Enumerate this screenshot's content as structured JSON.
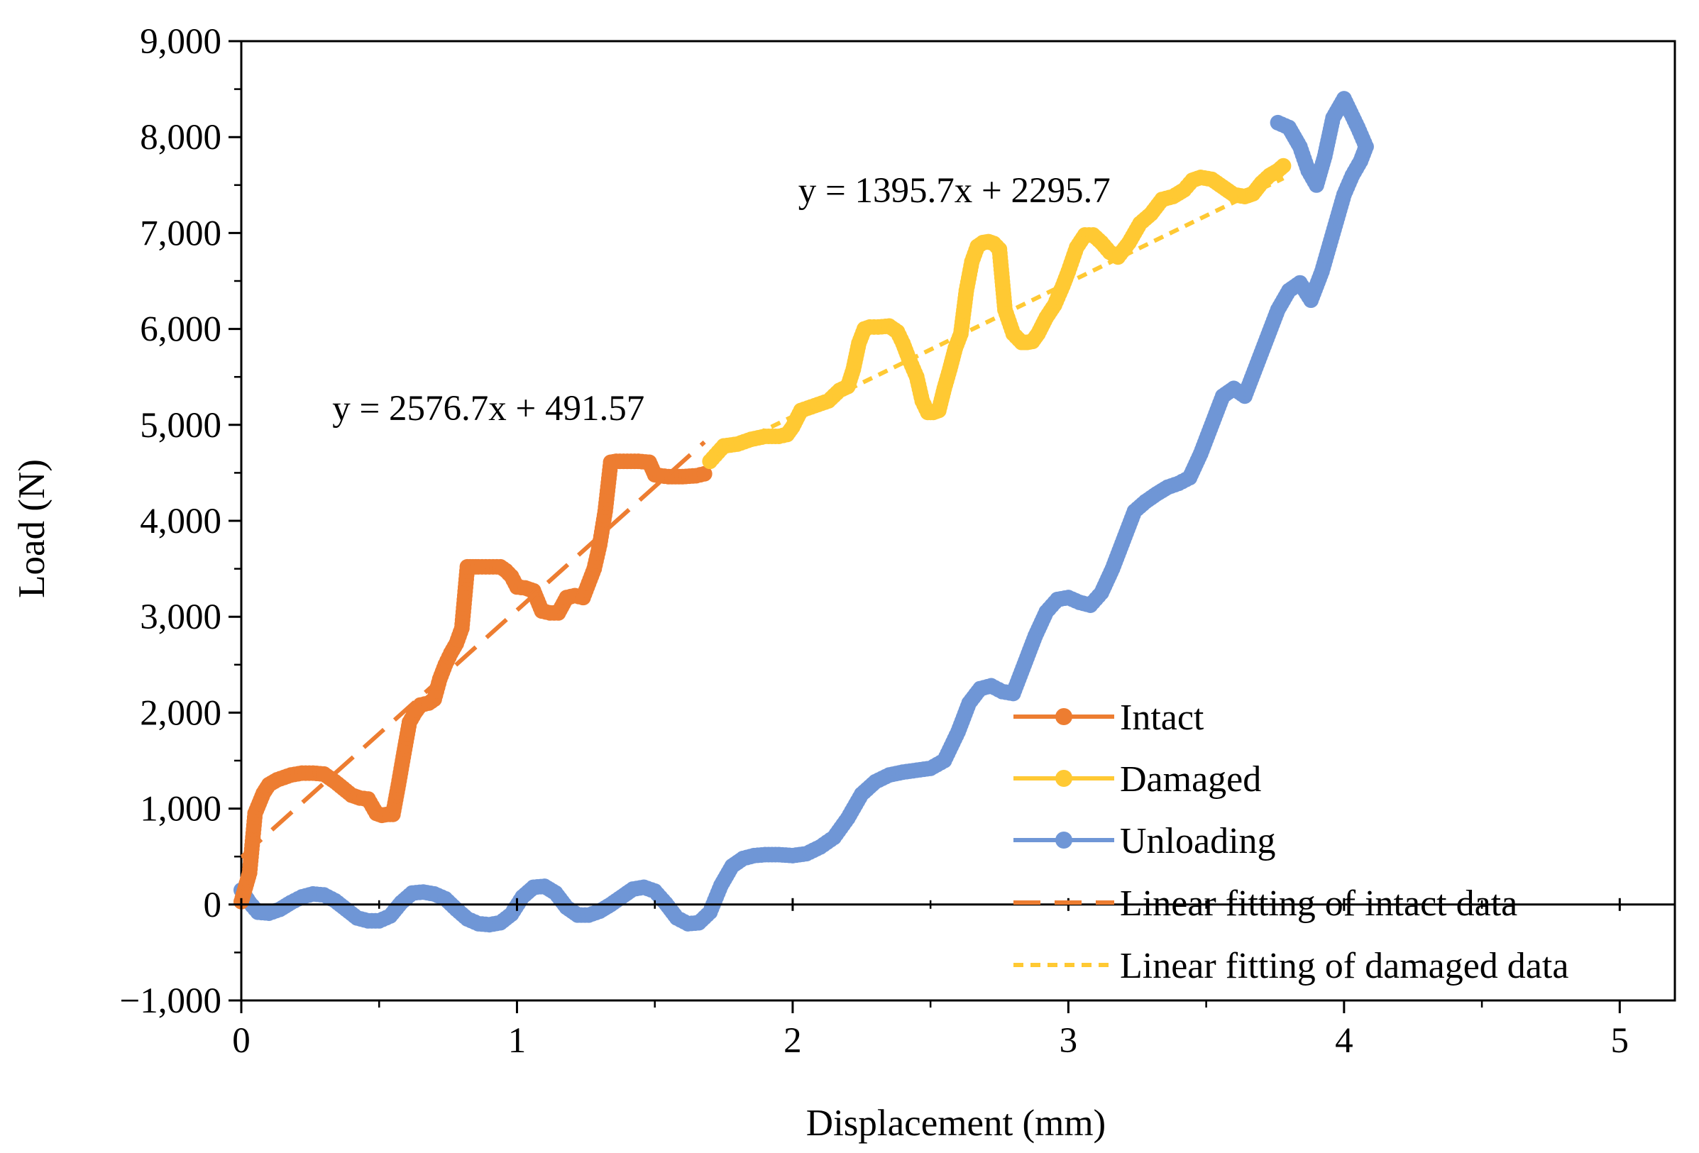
{
  "chart_data": {
    "type": "scatter",
    "title": "",
    "xlabel": "Displacement (mm)",
    "ylabel": "Load (N)",
    "xlim": [
      0,
      5.2
    ],
    "ylim": [
      -1000,
      9000
    ],
    "x_ticks": [
      0,
      1,
      2,
      3,
      4,
      5
    ],
    "x_tick_labels": [
      "0",
      "1",
      "2",
      "3",
      "4",
      "5"
    ],
    "y_ticks": [
      -1000,
      0,
      1000,
      2000,
      3000,
      4000,
      5000,
      6000,
      7000,
      8000,
      9000
    ],
    "y_tick_labels": [
      "−1,000",
      "0",
      "1,000",
      "2,000",
      "3,000",
      "4,000",
      "5,000",
      "6,000",
      "7,000",
      "8,000",
      "9,000"
    ],
    "grid": false,
    "legend_position": "bottom-right",
    "colors": {
      "intact": "#ED7D31",
      "damaged": "#FFC933",
      "unloading": "#6F96D6"
    },
    "series": [
      {
        "name": "Intact",
        "kind": "line-marker",
        "color": "#ED7D31",
        "x": [
          0,
          0.03,
          0.05,
          0.08,
          0.1,
          0.13,
          0.18,
          0.22,
          0.26,
          0.3,
          0.34,
          0.37,
          0.4,
          0.43,
          0.46,
          0.49,
          0.51,
          0.53,
          0.55,
          0.57,
          0.59,
          0.61,
          0.63,
          0.65,
          0.68,
          0.7,
          0.72,
          0.74,
          0.76,
          0.78,
          0.8,
          0.82,
          0.84,
          0.86,
          0.9,
          0.94,
          0.96,
          0.98,
          1.0,
          1.03,
          1.06,
          1.09,
          1.12,
          1.15,
          1.18,
          1.21,
          1.24,
          1.26,
          1.28,
          1.3,
          1.32,
          1.34,
          1.36,
          1.4,
          1.44,
          1.48,
          1.5,
          1.52,
          1.55,
          1.6,
          1.65,
          1.68
        ],
        "y": [
          30,
          330,
          950,
          1160,
          1250,
          1300,
          1350,
          1370,
          1370,
          1360,
          1280,
          1210,
          1140,
          1110,
          1100,
          950,
          930,
          940,
          940,
          1250,
          1580,
          1900,
          2000,
          2080,
          2100,
          2140,
          2350,
          2500,
          2620,
          2720,
          2880,
          3520,
          3520,
          3520,
          3520,
          3520,
          3480,
          3420,
          3310,
          3300,
          3270,
          3060,
          3040,
          3040,
          3200,
          3220,
          3200,
          3350,
          3500,
          3750,
          4100,
          4610,
          4620,
          4620,
          4620,
          4610,
          4480,
          4470,
          4460,
          4460,
          4470,
          4490
        ]
      },
      {
        "name": "Damaged",
        "kind": "line-marker",
        "color": "#FFC933",
        "x": [
          1.7,
          1.75,
          1.8,
          1.85,
          1.9,
          1.95,
          1.98,
          2.0,
          2.03,
          2.08,
          2.13,
          2.17,
          2.2,
          2.22,
          2.24,
          2.26,
          2.28,
          2.31,
          2.35,
          2.38,
          2.4,
          2.42,
          2.45,
          2.47,
          2.49,
          2.51,
          2.53,
          2.55,
          2.57,
          2.59,
          2.61,
          2.63,
          2.65,
          2.67,
          2.69,
          2.71,
          2.73,
          2.75,
          2.77,
          2.8,
          2.83,
          2.85,
          2.87,
          2.89,
          2.92,
          2.95,
          2.98,
          3.0,
          3.03,
          3.06,
          3.09,
          3.12,
          3.15,
          3.18,
          3.22,
          3.26,
          3.3,
          3.34,
          3.38,
          3.42,
          3.45,
          3.48,
          3.52,
          3.56,
          3.6,
          3.64,
          3.67,
          3.7,
          3.73,
          3.76,
          3.78
        ],
        "y": [
          4620,
          4780,
          4800,
          4850,
          4880,
          4880,
          4900,
          4980,
          5150,
          5200,
          5250,
          5360,
          5400,
          5580,
          5850,
          6000,
          6020,
          6020,
          6030,
          5970,
          5850,
          5700,
          5500,
          5250,
          5130,
          5130,
          5150,
          5380,
          5580,
          5800,
          5950,
          6400,
          6700,
          6860,
          6900,
          6910,
          6890,
          6830,
          6200,
          5950,
          5860,
          5860,
          5870,
          5950,
          6120,
          6250,
          6450,
          6600,
          6850,
          6980,
          6980,
          6900,
          6800,
          6750,
          6900,
          7100,
          7200,
          7350,
          7380,
          7450,
          7550,
          7580,
          7560,
          7480,
          7400,
          7380,
          7410,
          7520,
          7600,
          7650,
          7700
        ]
      },
      {
        "name": "Unloading",
        "kind": "line-marker",
        "color": "#6F96D6",
        "x": [
          0,
          0.03,
          0.06,
          0.1,
          0.14,
          0.18,
          0.22,
          0.26,
          0.3,
          0.34,
          0.38,
          0.42,
          0.46,
          0.5,
          0.54,
          0.58,
          0.62,
          0.66,
          0.7,
          0.74,
          0.78,
          0.82,
          0.86,
          0.9,
          0.94,
          0.98,
          1.02,
          1.06,
          1.1,
          1.14,
          1.18,
          1.22,
          1.26,
          1.3,
          1.34,
          1.38,
          1.42,
          1.46,
          1.5,
          1.54,
          1.58,
          1.62,
          1.66,
          1.7,
          1.74,
          1.78,
          1.82,
          1.86,
          1.9,
          1.95,
          2.0,
          2.05,
          2.1,
          2.15,
          2.2,
          2.25,
          2.3,
          2.35,
          2.4,
          2.45,
          2.5,
          2.55,
          2.6,
          2.64,
          2.68,
          2.72,
          2.76,
          2.8,
          2.84,
          2.88,
          2.92,
          2.96,
          3.0,
          3.04,
          3.08,
          3.12,
          3.16,
          3.2,
          3.24,
          3.28,
          3.32,
          3.36,
          3.4,
          3.44,
          3.48,
          3.52,
          3.56,
          3.6,
          3.64,
          3.68,
          3.72,
          3.76,
          3.8,
          3.84,
          3.88,
          3.92,
          3.96,
          4.0,
          4.03,
          4.06,
          4.08,
          4.05,
          4.0,
          3.96,
          3.93,
          3.9,
          3.87,
          3.84,
          3.8,
          3.76
        ],
        "y": [
          150,
          20,
          -80,
          -90,
          -50,
          20,
          80,
          110,
          100,
          40,
          -50,
          -140,
          -170,
          -170,
          -120,
          20,
          120,
          130,
          110,
          60,
          -50,
          -150,
          -200,
          -210,
          -190,
          -100,
          80,
          180,
          190,
          120,
          -30,
          -110,
          -110,
          -70,
          0,
          80,
          160,
          180,
          140,
          10,
          -140,
          -200,
          -190,
          -80,
          200,
          400,
          480,
          510,
          520,
          520,
          510,
          530,
          600,
          700,
          900,
          1150,
          1280,
          1350,
          1380,
          1400,
          1420,
          1500,
          1800,
          2100,
          2250,
          2280,
          2220,
          2200,
          2500,
          2800,
          3050,
          3180,
          3200,
          3150,
          3120,
          3250,
          3500,
          3800,
          4100,
          4200,
          4280,
          4350,
          4390,
          4450,
          4700,
          5000,
          5300,
          5380,
          5300,
          5600,
          5900,
          6200,
          6400,
          6480,
          6300,
          6600,
          7000,
          7400,
          7600,
          7750,
          7900,
          8100,
          8400,
          8200,
          7800,
          7500,
          7650,
          7900,
          8100,
          8150
        ]
      },
      {
        "name": "Linear fitting of intact data",
        "kind": "fit-dashed",
        "color": "#ED7D31",
        "slope": 2576.7,
        "intercept": 491.57,
        "x_range": [
          0,
          1.68
        ]
      },
      {
        "name": "Linear fitting of damaged data",
        "kind": "fit-dotted",
        "color": "#FFC933",
        "slope": 1395.7,
        "intercept": 2295.7,
        "x_range": [
          1.7,
          3.78
        ]
      }
    ],
    "annotations": [
      {
        "text": "y = 2576.7x + 491.57",
        "x": 0.33,
        "y": 5050
      },
      {
        "text": "y = 1395.7x + 2295.7",
        "x": 2.02,
        "y": 7320
      }
    ]
  },
  "legend": {
    "items": [
      {
        "label": "Intact",
        "style": "line-marker",
        "color": "#ED7D31"
      },
      {
        "label": "Damaged",
        "style": "line-marker",
        "color": "#FFC933"
      },
      {
        "label": "Unloading",
        "style": "line-marker",
        "color": "#6F96D6"
      },
      {
        "label": "Linear fitting of intact data",
        "style": "dashed",
        "color": "#ED7D31"
      },
      {
        "label": "Linear fitting of damaged data",
        "style": "dotted",
        "color": "#FFC933"
      }
    ]
  }
}
